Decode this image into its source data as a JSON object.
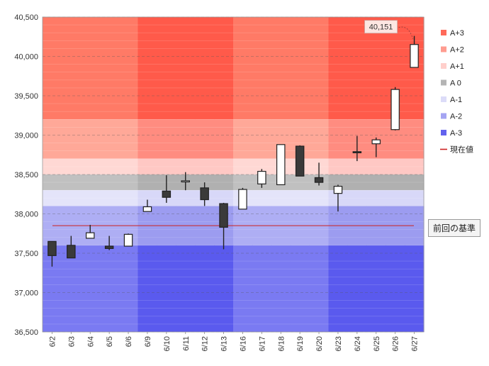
{
  "chart_data": {
    "type": "candlestick",
    "ylim": [
      36500,
      40500
    ],
    "y_ticks": [
      "36,500",
      "37,000",
      "37,500",
      "38,000",
      "38,500",
      "39,000",
      "39,500",
      "40,000",
      "40,500"
    ],
    "y_tick_values": [
      36500,
      37000,
      37500,
      38000,
      38500,
      39000,
      39500,
      40000,
      40500
    ],
    "categories": [
      "6/2",
      "6/3",
      "6/4",
      "6/5",
      "6/6",
      "6/9",
      "6/10",
      "6/11",
      "6/12",
      "6/13",
      "6/16",
      "6/17",
      "6/18",
      "6/19",
      "6/20",
      "6/23",
      "6/24",
      "6/25",
      "6/26",
      "6/27"
    ],
    "candles": [
      {
        "open": 37650,
        "high": 37650,
        "low": 37330,
        "close": 37470
      },
      {
        "open": 37600,
        "high": 37720,
        "low": 37440,
        "close": 37440
      },
      {
        "open": 37690,
        "high": 37860,
        "low": 37690,
        "close": 37760
      },
      {
        "open": 37590,
        "high": 37720,
        "low": 37540,
        "close": 37560
      },
      {
        "open": 37590,
        "high": 37750,
        "low": 37590,
        "close": 37740
      },
      {
        "open": 38030,
        "high": 38180,
        "low": 38030,
        "close": 38090
      },
      {
        "open": 38290,
        "high": 38490,
        "low": 38140,
        "close": 38210
      },
      {
        "open": 38420,
        "high": 38530,
        "low": 38300,
        "close": 38420
      },
      {
        "open": 38330,
        "high": 38400,
        "low": 38100,
        "close": 38180
      },
      {
        "open": 38130,
        "high": 38140,
        "low": 37550,
        "close": 37830
      },
      {
        "open": 38060,
        "high": 38330,
        "low": 38060,
        "close": 38310
      },
      {
        "open": 38380,
        "high": 38570,
        "low": 38330,
        "close": 38540
      },
      {
        "open": 38370,
        "high": 38880,
        "low": 38370,
        "close": 38880
      },
      {
        "open": 38860,
        "high": 38870,
        "low": 38480,
        "close": 38480
      },
      {
        "open": 38460,
        "high": 38650,
        "low": 38360,
        "close": 38400
      },
      {
        "open": 38260,
        "high": 38370,
        "low": 38030,
        "close": 38350
      },
      {
        "open": 38790,
        "high": 38990,
        "low": 38670,
        "close": 38780
      },
      {
        "open": 38890,
        "high": 38970,
        "low": 38720,
        "close": 38940
      },
      {
        "open": 39070,
        "high": 39610,
        "low": 39060,
        "close": 39580
      },
      {
        "open": 39860,
        "high": 40260,
        "low": 39860,
        "close": 40151
      }
    ],
    "current_value_label": "40,151",
    "reference_line": {
      "value": 37850,
      "label": "前回の基準",
      "color": "#cc2222"
    },
    "bands": [
      {
        "name": "A+3",
        "from": 39200,
        "to": 40500,
        "color": "#ff5a4a",
        "alt_color": "#ff7a66"
      },
      {
        "name": "A+2",
        "from": 38700,
        "to": 39200,
        "color": "#ff8c80",
        "alt_color": "#ffa898"
      },
      {
        "name": "A+1",
        "from": 38500,
        "to": 38700,
        "color": "#ffc8c4",
        "alt_color": "#ffd8d4"
      },
      {
        "name": "A 0",
        "from": 38300,
        "to": 38500,
        "color": "#b0b0b0",
        "alt_color": "#c0c0c0"
      },
      {
        "name": "A-1",
        "from": 38100,
        "to": 38300,
        "color": "#d8d8f8",
        "alt_color": "#e4e4fa"
      },
      {
        "name": "A-2",
        "from": 37600,
        "to": 38100,
        "color": "#9c9cf0",
        "alt_color": "#aeaef4"
      },
      {
        "name": "A-3",
        "from": 36500,
        "to": 37600,
        "color": "#5a5aee",
        "alt_color": "#7a7af2"
      }
    ],
    "band_shade_columns": [
      "6/9",
      "6/10",
      "6/11",
      "6/12",
      "6/13",
      "6/23",
      "6/24",
      "6/25",
      "6/26",
      "6/27"
    ],
    "legend": [
      {
        "label": "A+3",
        "color": "#ff6a5a",
        "kind": "box"
      },
      {
        "label": "A+2",
        "color": "#ff9c90",
        "kind": "box"
      },
      {
        "label": "A+1",
        "color": "#ffcfcb",
        "kind": "box"
      },
      {
        "label": "A 0",
        "color": "#b4b4b4",
        "kind": "box"
      },
      {
        "label": "A-1",
        "color": "#dcdcf8",
        "kind": "box"
      },
      {
        "label": "A-2",
        "color": "#a4a4f2",
        "kind": "box"
      },
      {
        "label": "A-3",
        "color": "#6262ee",
        "kind": "box"
      },
      {
        "label": "現在値",
        "color": "#cc2222",
        "kind": "line"
      }
    ]
  }
}
